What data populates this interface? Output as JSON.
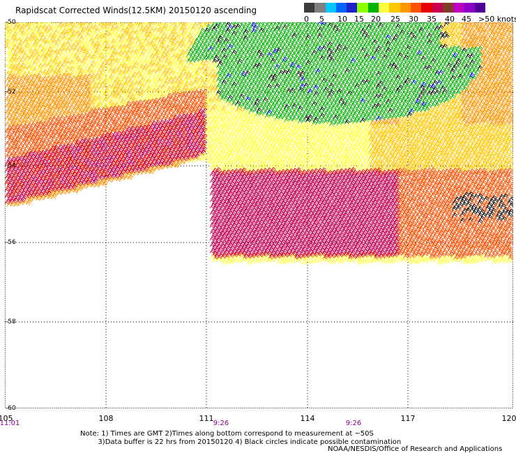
{
  "title": "Rapidscat Corrected Winds(12.5KM) 20150120 ascending",
  "legend": {
    "colors": [
      "#3c3c3c",
      "#7f7f7f",
      "#00c8ff",
      "#0064ff",
      "#2020c8",
      "#8cff00",
      "#00b400",
      "#ffff40",
      "#ffc800",
      "#ff9600",
      "#ff5000",
      "#e60000",
      "#c80050",
      "#7f3c28",
      "#c000c0",
      "#8c00c8",
      "#500096"
    ],
    "labels": [
      "0",
      "5",
      "10",
      "15",
      "20",
      "25",
      "30",
      "35",
      "40",
      "45",
      ">50 knots"
    ]
  },
  "axes": {
    "lat_labels": [
      "-50",
      "-52",
      "-54",
      "-56",
      "-58",
      "-60"
    ],
    "lon_labels": [
      "105",
      "108",
      "111",
      "114",
      "117",
      "120"
    ],
    "time_labels": [
      "11:01",
      "9:26",
      "9:26"
    ]
  },
  "swath_colors": {
    "yellow": "#ffff40",
    "gold": "#ffc800",
    "orange": "#ff9600",
    "darkorange": "#ff5000",
    "red": "#e60000",
    "crimson": "#c80050",
    "green": "#00b400",
    "black": "#000000",
    "blue": "#0000ff"
  },
  "note": "Note: 1) Times are GMT 2)Times along bottom correspond to measurement at ~50S\n        3)Data buffer is 22 hrs from 20150120 4) Black circles indicate possible contamination",
  "credit": "NOAA/NESDIS/Office of Research and Applications"
}
